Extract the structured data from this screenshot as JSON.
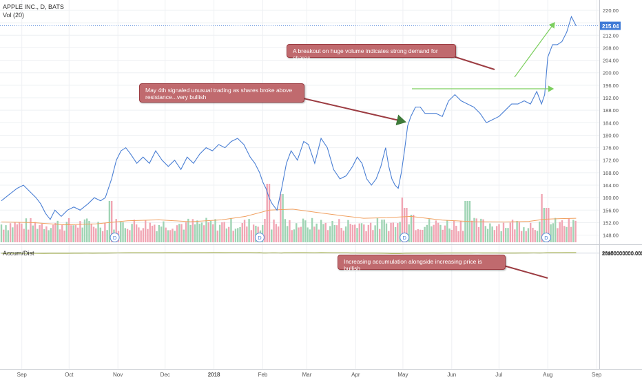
{
  "header": {
    "symbol_line": "APPLE INC., D, BATS",
    "volume_line": "Vol (20)",
    "lower_title": "Accum/Dist"
  },
  "annotations": [
    {
      "text": "A breakout on huge volume indicates strong demand for shares"
    },
    {
      "text": "May 4th signaled unusual trading as shares broke above resistance...very bullish"
    },
    {
      "text": "Increasing accumulation alongside increasing price is bullish"
    }
  ],
  "colors": {
    "price_line": "#4a7fd4",
    "ad_line": "#9aa63c",
    "volume_up": "#9fd4b4",
    "volume_down": "#f1a6b4",
    "volume_ma": "#f0a060",
    "arrow_green": "#7ccf5e",
    "callout_bg": "#c06a6e",
    "last_price_bg": "#3f7ad6"
  },
  "chart_data": [
    {
      "type": "line",
      "title": "APPLE INC., D, BATS",
      "last_price_label": "215.04",
      "y_ticks": [
        "220.00",
        "216.00",
        "212.00",
        "208.00",
        "204.00",
        "200.00",
        "196.00",
        "192.00",
        "188.00",
        "184.00",
        "180.00",
        "176.00",
        "172.00",
        "168.00",
        "164.00",
        "160.00",
        "156.00",
        "152.00",
        "148.00"
      ],
      "ylim": [
        146,
        222
      ],
      "x_tick_labels": [
        "Sep",
        "Oct",
        "Nov",
        "Dec",
        "2018",
        "Feb",
        "Mar",
        "Apr",
        "May",
        "Jun",
        "Jul",
        "Aug",
        "Sep"
      ],
      "x_tick_days": [
        13,
        43,
        74,
        104,
        135,
        166,
        194,
        225,
        255,
        286,
        316,
        347,
        378
      ],
      "dividend_markers": [
        {
          "label": "D",
          "day": 72
        },
        {
          "label": "D",
          "day": 164
        },
        {
          "label": "D",
          "day": 256
        },
        {
          "label": "D",
          "day": 346
        }
      ],
      "series": [
        {
          "values_key": "price",
          "points": [
            [
              0,
              159
            ],
            [
              5,
              161
            ],
            [
              10,
              163
            ],
            [
              14,
              164
            ],
            [
              18,
              162
            ],
            [
              22,
              160
            ],
            [
              25,
              158
            ],
            [
              28,
              155
            ],
            [
              31,
              153
            ],
            [
              34,
              156
            ],
            [
              38,
              154
            ],
            [
              42,
              156
            ],
            [
              46,
              157
            ],
            [
              50,
              156
            ],
            [
              55,
              158
            ],
            [
              59,
              160
            ],
            [
              63,
              159
            ],
            [
              66,
              160
            ],
            [
              70,
              166
            ],
            [
              73,
              172
            ],
            [
              76,
              175
            ],
            [
              79,
              176
            ],
            [
              82,
              174
            ],
            [
              86,
              171
            ],
            [
              90,
              173
            ],
            [
              94,
              171
            ],
            [
              98,
              175
            ],
            [
              102,
              172
            ],
            [
              106,
              170
            ],
            [
              110,
              172
            ],
            [
              114,
              169
            ],
            [
              118,
              173
            ],
            [
              122,
              171
            ],
            [
              126,
              174
            ],
            [
              130,
              176
            ],
            [
              134,
              175
            ],
            [
              138,
              177
            ],
            [
              142,
              176
            ],
            [
              146,
              178
            ],
            [
              150,
              179
            ],
            [
              154,
              177
            ],
            [
              158,
              173
            ],
            [
              161,
              171
            ],
            [
              164,
              168
            ],
            [
              166,
              165
            ],
            [
              168,
              163
            ],
            [
              170,
              160
            ],
            [
              172,
              158
            ],
            [
              175,
              156
            ],
            [
              178,
              163
            ],
            [
              181,
              171
            ],
            [
              184,
              175
            ],
            [
              188,
              172
            ],
            [
              192,
              178
            ],
            [
              195,
              177
            ],
            [
              199,
              171
            ],
            [
              203,
              179
            ],
            [
              207,
              176
            ],
            [
              211,
              169
            ],
            [
              215,
              166
            ],
            [
              219,
              167
            ],
            [
              223,
              170
            ],
            [
              226,
              173
            ],
            [
              229,
              171
            ],
            [
              232,
              166
            ],
            [
              235,
              164
            ],
            [
              238,
              166
            ],
            [
              241,
              170
            ],
            [
              244,
              176
            ],
            [
              246,
              170
            ],
            [
              248,
              166
            ],
            [
              250,
              164
            ],
            [
              252,
              163
            ],
            [
              254,
              168
            ],
            [
              256,
              175
            ],
            [
              258,
              183
            ],
            [
              260,
              186
            ],
            [
              263,
              189
            ],
            [
              266,
              189
            ],
            [
              269,
              187
            ],
            [
              272,
              187
            ],
            [
              276,
              187
            ],
            [
              280,
              186
            ],
            [
              284,
              191
            ],
            [
              288,
              193
            ],
            [
              292,
              191
            ],
            [
              296,
              190
            ],
            [
              300,
              189
            ],
            [
              304,
              187
            ],
            [
              308,
              184
            ],
            [
              312,
              185
            ],
            [
              316,
              186
            ],
            [
              320,
              188
            ],
            [
              324,
              190
            ],
            [
              328,
              190
            ],
            [
              332,
              191
            ],
            [
              336,
              190
            ],
            [
              340,
              194
            ],
            [
              343,
              190
            ],
            [
              345,
              193
            ],
            [
              347,
              205
            ],
            [
              350,
              209
            ],
            [
              353,
              209
            ],
            [
              356,
              210
            ],
            [
              359,
              213
            ],
            [
              362,
              218
            ],
            [
              365,
              215
            ]
          ]
        },
        {
          "values_key": "volume_ma_level",
          "points": [
            [
              0,
              152.2
            ],
            [
              20,
              152.0
            ],
            [
              40,
              151.3
            ],
            [
              60,
              151.6
            ],
            [
              80,
              152.6
            ],
            [
              100,
              152.9
            ],
            [
              120,
              152.3
            ],
            [
              140,
              152.9
            ],
            [
              155,
              154.0
            ],
            [
              170,
              156.0
            ],
            [
              185,
              156.3
            ],
            [
              200,
              155.3
            ],
            [
              215,
              154.3
            ],
            [
              230,
              153.4
            ],
            [
              245,
              153.6
            ],
            [
              260,
              154.0
            ],
            [
              280,
              152.8
            ],
            [
              300,
              152.3
            ],
            [
              320,
              152.2
            ],
            [
              335,
              152.4
            ],
            [
              345,
              153.1
            ],
            [
              355,
              153.3
            ],
            [
              365,
              153.4
            ]
          ]
        }
      ]
    },
    {
      "type": "line",
      "title": "Accum/Dist",
      "y_ticks": [
        "26450000000.0000",
        "26400000000.0000",
        "26350000000.0000",
        "26300000000.0000",
        "26250000000.0000",
        "26200000000.0000",
        "26150000000.0000",
        "26100000000.0000",
        "26050000000.0000"
      ],
      "ylim": [
        26035000000,
        26465000000
      ],
      "series": [
        {
          "name": "Accum/Dist",
          "points": [
            [
              0,
              26130000000
            ],
            [
              6,
              26140000000
            ],
            [
              10,
              26148000000
            ],
            [
              14,
              26130000000
            ],
            [
              18,
              26135000000
            ],
            [
              22,
              26115000000
            ],
            [
              27,
              26100000000
            ],
            [
              31,
              26160000000
            ],
            [
              35,
              26155000000
            ],
            [
              39,
              26175000000
            ],
            [
              42,
              26165000000
            ],
            [
              46,
              26185000000
            ],
            [
              50,
              26205000000
            ],
            [
              54,
              26215000000
            ],
            [
              58,
              26200000000
            ],
            [
              62,
              26220000000
            ],
            [
              66,
              26220000000
            ],
            [
              70,
              26255000000
            ],
            [
              74,
              26295000000
            ],
            [
              78,
              26320000000
            ],
            [
              82,
              26355000000
            ],
            [
              86,
              26350000000
            ],
            [
              90,
              26348000000
            ],
            [
              94,
              26365000000
            ],
            [
              98,
              26360000000
            ],
            [
              102,
              26350000000
            ],
            [
              106,
              26370000000
            ],
            [
              110,
              26375000000
            ],
            [
              114,
              26365000000
            ],
            [
              118,
              26380000000
            ],
            [
              122,
              26375000000
            ],
            [
              126,
              26385000000
            ],
            [
              130,
              26400000000
            ],
            [
              134,
              26405000000
            ],
            [
              138,
              26430000000
            ],
            [
              142,
              26400000000
            ],
            [
              146,
              26445000000
            ],
            [
              150,
              26440000000
            ],
            [
              154,
              26450000000
            ],
            [
              158,
              26440000000
            ],
            [
              162,
              26360000000
            ],
            [
              164,
              26370000000
            ],
            [
              166,
              26265000000
            ],
            [
              168,
              26260000000
            ],
            [
              170,
              26290000000
            ],
            [
              172,
              26320000000
            ],
            [
              174,
              26305000000
            ],
            [
              176,
              26275000000
            ],
            [
              178,
              26260000000
            ],
            [
              180,
              26340000000
            ],
            [
              184,
              26355000000
            ],
            [
              188,
              26380000000
            ],
            [
              192,
              26370000000
            ],
            [
              195,
              26345000000
            ],
            [
              199,
              26325000000
            ],
            [
              203,
              26390000000
            ],
            [
              207,
              26360000000
            ],
            [
              211,
              26305000000
            ],
            [
              215,
              26330000000
            ],
            [
              218,
              26310000000
            ],
            [
              220,
              26305000000
            ],
            [
              222,
              26270000000
            ],
            [
              225,
              26260000000
            ],
            [
              228,
              26230000000
            ],
            [
              231,
              26240000000
            ],
            [
              234,
              26220000000
            ],
            [
              238,
              26215000000
            ],
            [
              242,
              26205000000
            ],
            [
              245,
              26170000000
            ],
            [
              248,
              26075000000
            ],
            [
              250,
              26065000000
            ],
            [
              253,
              26060000000
            ],
            [
              255,
              26120000000
            ],
            [
              257,
              26180000000
            ],
            [
              259,
              26195000000
            ],
            [
              262,
              26225000000
            ],
            [
              266,
              26235000000
            ],
            [
              270,
              26240000000
            ],
            [
              274,
              26245000000
            ],
            [
              278,
              26230000000
            ],
            [
              282,
              26255000000
            ],
            [
              286,
              26270000000
            ],
            [
              290,
              26255000000
            ],
            [
              294,
              26265000000
            ],
            [
              298,
              26270000000
            ],
            [
              302,
              26290000000
            ],
            [
              306,
              26260000000
            ],
            [
              310,
              26270000000
            ],
            [
              314,
              26255000000
            ],
            [
              318,
              26240000000
            ],
            [
              322,
              26235000000
            ],
            [
              326,
              26240000000
            ],
            [
              330,
              26260000000
            ],
            [
              334,
              26250000000
            ],
            [
              338,
              26275000000
            ],
            [
              342,
              26260000000
            ],
            [
              344,
              26300000000
            ],
            [
              346,
              26360000000
            ],
            [
              350,
              26390000000
            ],
            [
              353,
              26385000000
            ],
            [
              356,
              26395000000
            ],
            [
              359,
              26420000000
            ],
            [
              362,
              26430000000
            ],
            [
              365,
              26410000000
            ]
          ]
        }
      ]
    }
  ]
}
